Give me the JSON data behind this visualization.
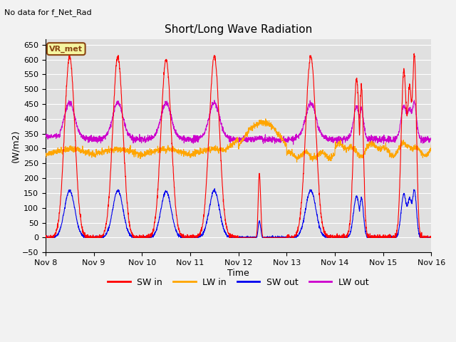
{
  "title": "Short/Long Wave Radiation",
  "xlabel": "Time",
  "ylabel": "(W/m2)",
  "top_left_text": "No data for f_Net_Rad",
  "legend_label_text": "VR_met",
  "xtick_labels": [
    "Nov 8",
    "Nov 9",
    "Nov 10",
    "Nov 11",
    "Nov 12",
    "Nov 13",
    "Nov 14",
    "Nov 15",
    "Nov 16"
  ],
  "background_color": "#e0e0e0",
  "grid_color": "#ffffff",
  "sw_in_color": "#ff0000",
  "lw_in_color": "#ffa500",
  "sw_out_color": "#0000ee",
  "lw_out_color": "#cc00cc",
  "legend_entries": [
    "SW in",
    "LW in",
    "SW out",
    "LW out"
  ],
  "legend_colors": [
    "#ff0000",
    "#ffa500",
    "#0000ee",
    "#cc00cc"
  ],
  "fig_bg": "#f2f2f2"
}
